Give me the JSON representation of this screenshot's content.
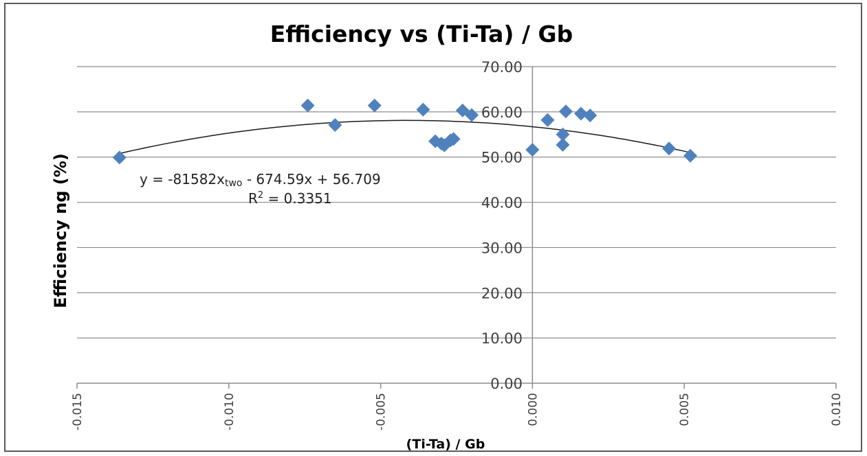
{
  "chart_data": {
    "type": "scatter",
    "title": "Efficiency vs (Ti-Ta) / Gb",
    "xlabel": "(Ti-Ta) / Gb",
    "ylabel": "Efficiency ng (%)",
    "xlim": [
      -0.015,
      0.01
    ],
    "ylim": [
      0,
      70
    ],
    "x_ticks": [
      "-0.015",
      "-0.010",
      "-0.005",
      "0.000",
      "0.005",
      "0.010"
    ],
    "y_ticks": [
      "0.00",
      "10.00",
      "20.00",
      "30.00",
      "40.00",
      "50.00",
      "60.00",
      "70.00"
    ],
    "grid": true,
    "marker_color": "#4f81bd",
    "points": [
      {
        "x": -0.0136,
        "y": 49.9
      },
      {
        "x": -0.0074,
        "y": 61.4
      },
      {
        "x": -0.0065,
        "y": 57.1
      },
      {
        "x": -0.0052,
        "y": 61.4
      },
      {
        "x": -0.0036,
        "y": 60.5
      },
      {
        "x": -0.0032,
        "y": 53.5
      },
      {
        "x": -0.003,
        "y": 53.0
      },
      {
        "x": -0.0029,
        "y": 52.6
      },
      {
        "x": -0.0027,
        "y": 53.7
      },
      {
        "x": -0.0026,
        "y": 54.0
      },
      {
        "x": -0.0023,
        "y": 60.3
      },
      {
        "x": -0.002,
        "y": 59.3
      },
      {
        "x": 0.0,
        "y": 51.6
      },
      {
        "x": 0.0005,
        "y": 58.2
      },
      {
        "x": 0.001,
        "y": 52.7
      },
      {
        "x": 0.001,
        "y": 55.0
      },
      {
        "x": 0.0011,
        "y": 60.1
      },
      {
        "x": 0.0016,
        "y": 59.6
      },
      {
        "x": 0.0019,
        "y": 59.2
      },
      {
        "x": 0.0045,
        "y": 51.9
      },
      {
        "x": 0.0052,
        "y": 50.3
      }
    ],
    "trendline": {
      "type": "polynomial",
      "coefficients": {
        "a": -81582,
        "b": -674.59,
        "c": 56.709
      },
      "x_range": [
        -0.0136,
        0.0052
      ],
      "equation_label": "y = -81582x",
      "equation_sub": "two",
      "equation_rest": " - 674.59x + 56.709",
      "r2_prefix": "R",
      "r2_sup": "2",
      "r2_value": " = 0.3351"
    }
  }
}
